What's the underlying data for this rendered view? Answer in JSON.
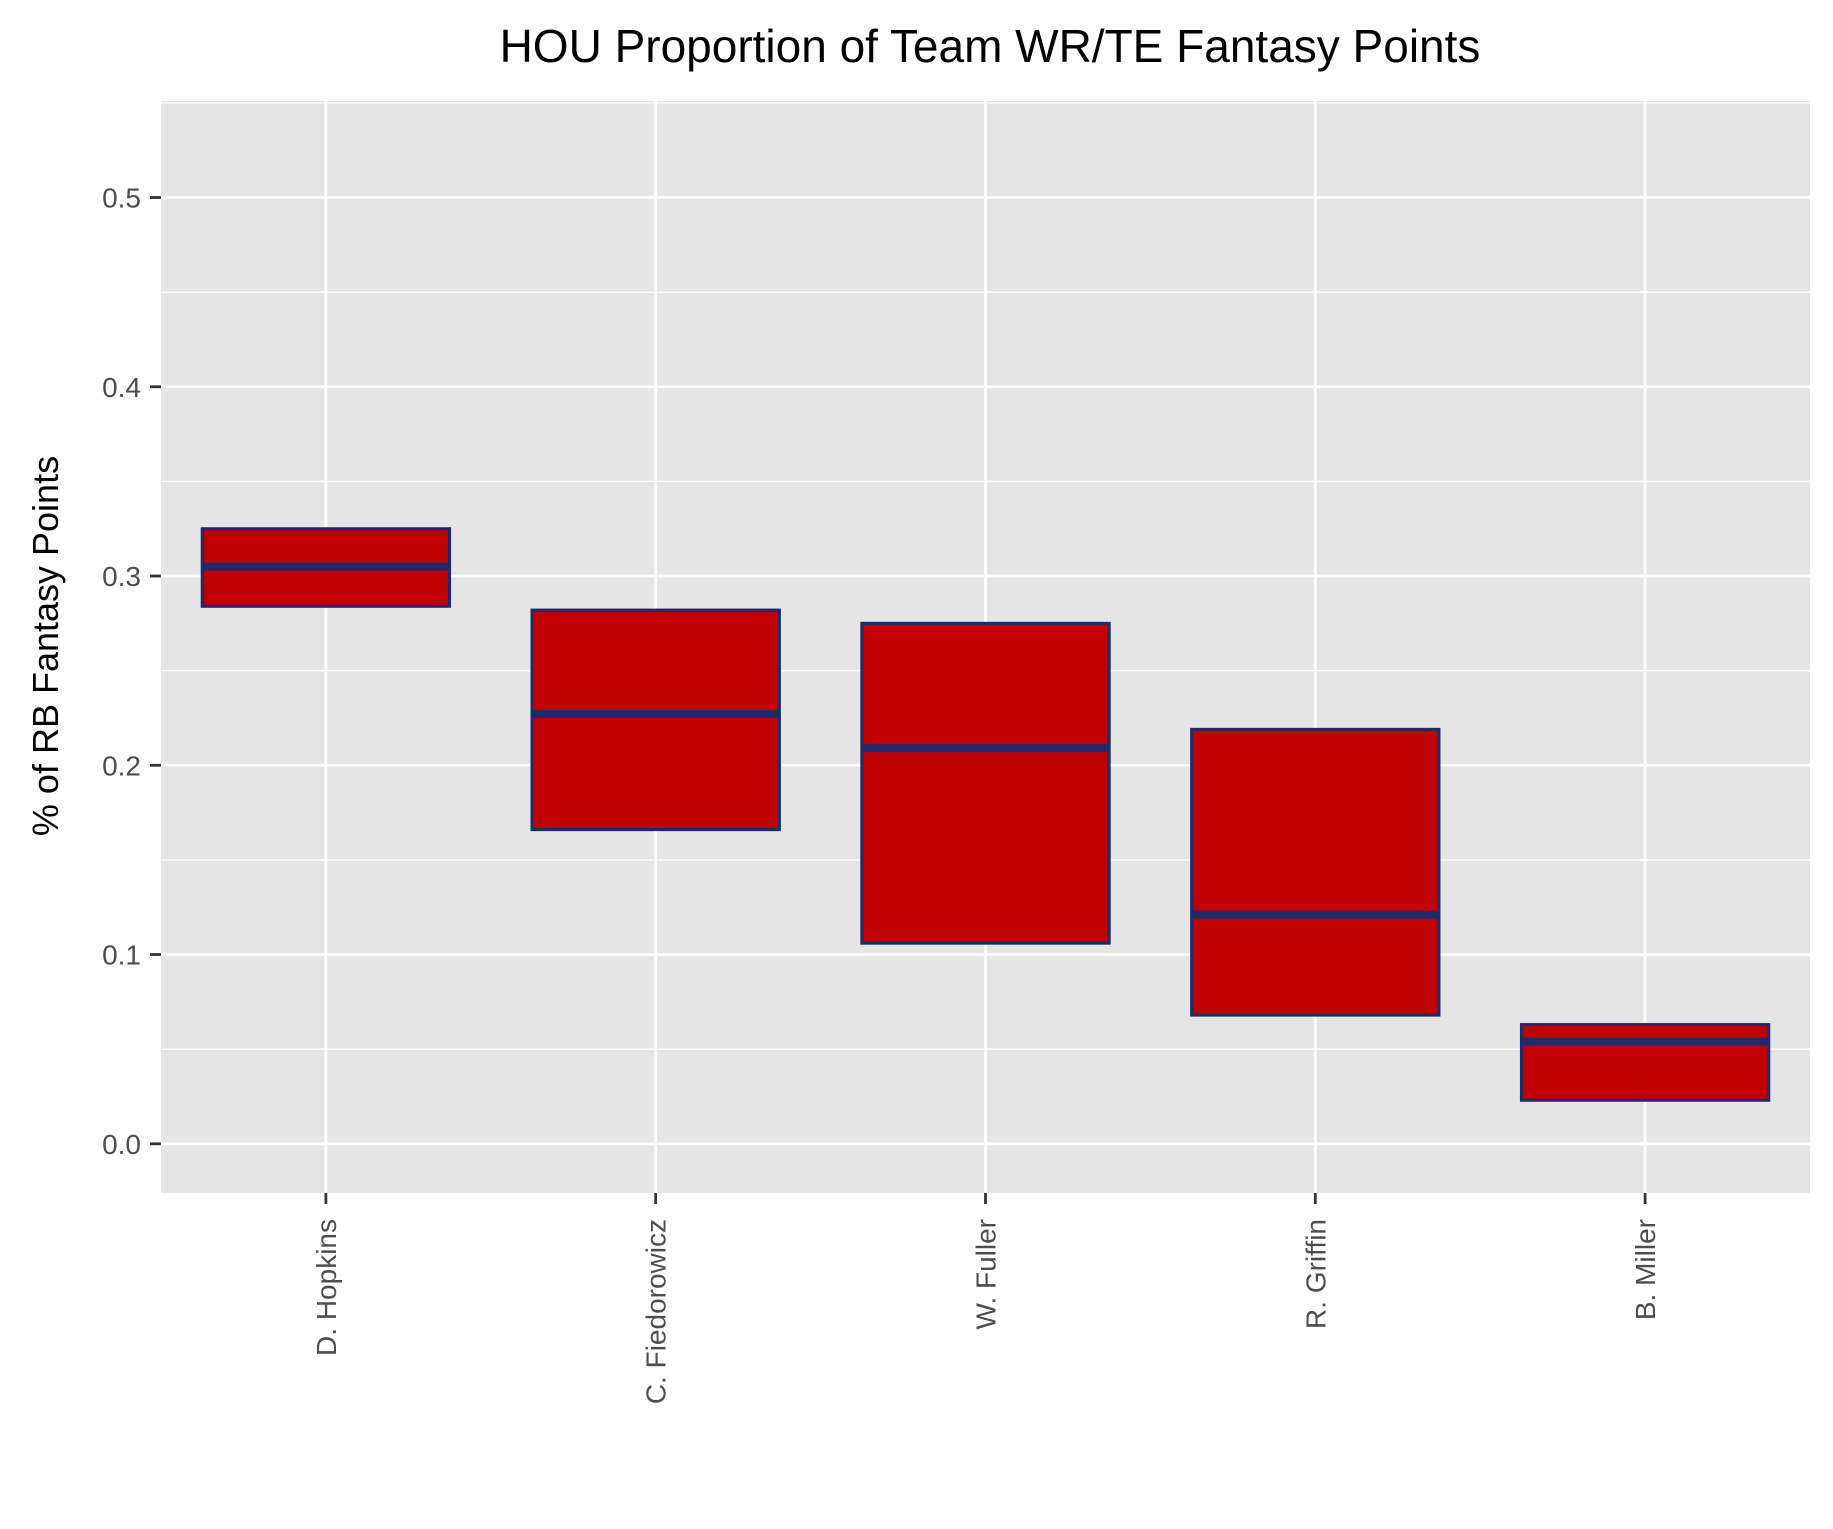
{
  "chart_data": {
    "type": "boxplot",
    "title": "HOU Proportion of Team WR/TE Fantasy Points",
    "xlabel": "",
    "ylabel": "% of RB Fantasy Points",
    "ylim": [
      -0.026,
      0.551
    ],
    "yticks": [
      0.0,
      0.1,
      0.2,
      0.3,
      0.4,
      0.5
    ],
    "ytick_labels": [
      "0.0",
      "0.1",
      "0.2",
      "0.3",
      "0.4",
      "0.5"
    ],
    "grid": true,
    "categories": [
      "D. Hopkins",
      "C. Fiedorowicz",
      "W. Fuller",
      "R. Griffin",
      "B. Miller"
    ],
    "boxes": [
      {
        "lower": 0.284,
        "median": 0.305,
        "upper": 0.325
      },
      {
        "lower": 0.166,
        "median": 0.227,
        "upper": 0.282
      },
      {
        "lower": 0.106,
        "median": 0.209,
        "upper": 0.275
      },
      {
        "lower": 0.068,
        "median": 0.121,
        "upper": 0.219
      },
      {
        "lower": 0.023,
        "median": 0.054,
        "upper": 0.063
      }
    ],
    "colors": {
      "box_fill": "#c00000",
      "box_outline": "#1f2a6b",
      "panel": "#e5e5e5",
      "grid": "#ffffff"
    }
  }
}
